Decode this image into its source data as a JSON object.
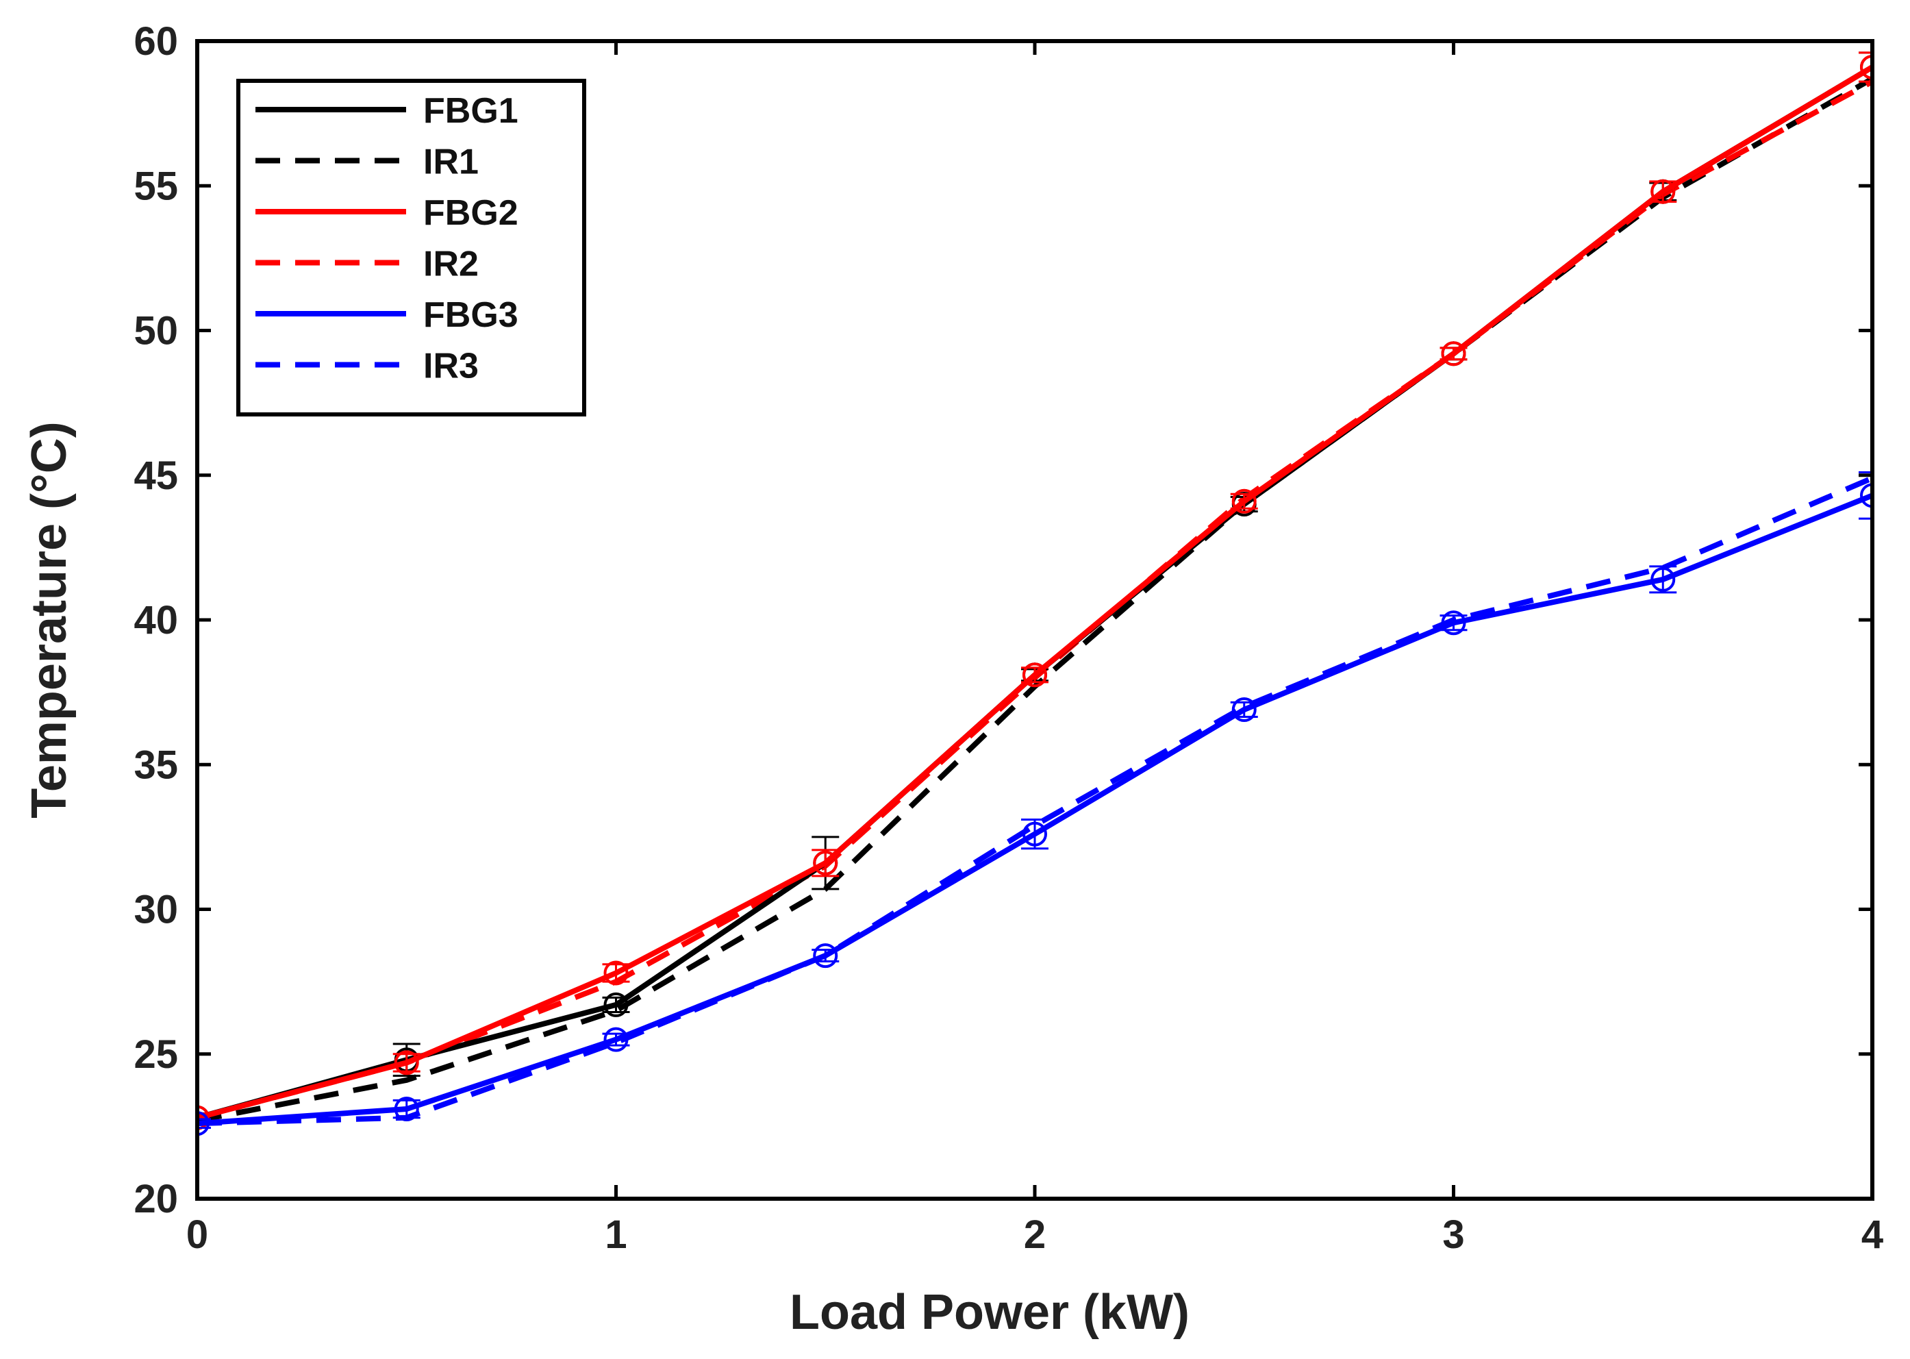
{
  "chart_data": {
    "type": "line",
    "title": "",
    "xlabel": "Load Power (kW)",
    "ylabel": "Temperature (°C)",
    "xlim": [
      0,
      4
    ],
    "ylim": [
      20,
      60
    ],
    "xticks": [
      0,
      1,
      2,
      3,
      4
    ],
    "xtick_labels": [
      "0",
      "1",
      "2",
      "3",
      "4"
    ],
    "yticks": [
      20,
      25,
      30,
      35,
      40,
      45,
      50,
      55,
      60
    ],
    "ytick_labels": [
      "20",
      "25",
      "30",
      "35",
      "40",
      "45",
      "50",
      "55",
      "60"
    ],
    "grid": false,
    "legend_position": "top-left",
    "x": [
      0,
      0.5,
      1,
      1.5,
      2,
      2.5,
      3,
      3.5,
      4
    ],
    "series": [
      {
        "name": "FBG1",
        "color": "#000000",
        "dash": "solid",
        "markers": true,
        "values": [
          22.8,
          24.8,
          26.7,
          31.6,
          38.1,
          44.0,
          49.2,
          54.8,
          59.1
        ],
        "errors": [
          0.15,
          0.55,
          0.25,
          0.9,
          0.2,
          0.25,
          0.2,
          0.3,
          0.5
        ]
      },
      {
        "name": "IR1",
        "color": "#000000",
        "dash": "dashed",
        "markers": false,
        "values": [
          22.7,
          24.1,
          26.5,
          30.7,
          37.7,
          44.0,
          49.2,
          54.6,
          58.7
        ]
      },
      {
        "name": "FBG2",
        "color": "#ff0000",
        "dash": "solid",
        "markers": true,
        "values": [
          22.8,
          24.7,
          27.8,
          31.6,
          38.1,
          44.1,
          49.2,
          54.8,
          59.1
        ],
        "errors": [
          0.15,
          0.3,
          0.3,
          0.45,
          0.25,
          0.25,
          0.2,
          0.35,
          0.5
        ]
      },
      {
        "name": "IR2",
        "color": "#ff0000",
        "dash": "dashed",
        "markers": false,
        "values": [
          22.8,
          24.7,
          27.5,
          31.5,
          38.0,
          44.2,
          49.2,
          54.7,
          58.6
        ]
      },
      {
        "name": "FBG3",
        "color": "#0000ff",
        "dash": "solid",
        "markers": true,
        "values": [
          22.6,
          23.1,
          25.5,
          28.4,
          32.6,
          36.9,
          39.9,
          41.4,
          44.3
        ],
        "errors": [
          0.15,
          0.3,
          0.2,
          0.2,
          0.5,
          0.25,
          0.25,
          0.45,
          0.8
        ]
      },
      {
        "name": "IR3",
        "color": "#0000ff",
        "dash": "dashed",
        "markers": false,
        "values": [
          22.6,
          22.8,
          25.4,
          28.4,
          32.9,
          37.0,
          40.0,
          41.8,
          44.9
        ]
      }
    ]
  }
}
